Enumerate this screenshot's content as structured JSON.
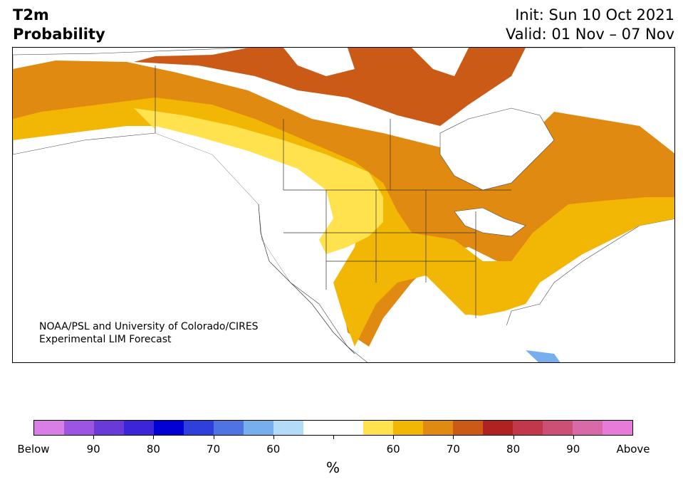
{
  "header": {
    "title_line1": "T2m",
    "title_line2": "Probability",
    "init": "Init: Sun 10 Oct 2021",
    "valid": "Valid: 01 Nov – 07 Nov"
  },
  "credit": {
    "line1": "NOAA/PSL and University of Colorado/CIRES",
    "line2": "Experimental LIM Forecast"
  },
  "colorbar": {
    "colors": [
      "#d97ee6",
      "#9b55e0",
      "#6a3ad8",
      "#3b25d6",
      "#0000d4",
      "#2f3fdc",
      "#4f73e3",
      "#76aeee",
      "#b3dcf8",
      "#ffffff",
      "#ffffff",
      "#ffe24d",
      "#f2b705",
      "#e08a12",
      "#cc5a17",
      "#b02222",
      "#c2374a",
      "#cc4f75",
      "#d96aa8",
      "#e87ad9"
    ],
    "labels": [
      "Below",
      "90",
      "80",
      "70",
      "60",
      "60",
      "70",
      "80",
      "90",
      "Above"
    ],
    "unit": "%"
  }
}
